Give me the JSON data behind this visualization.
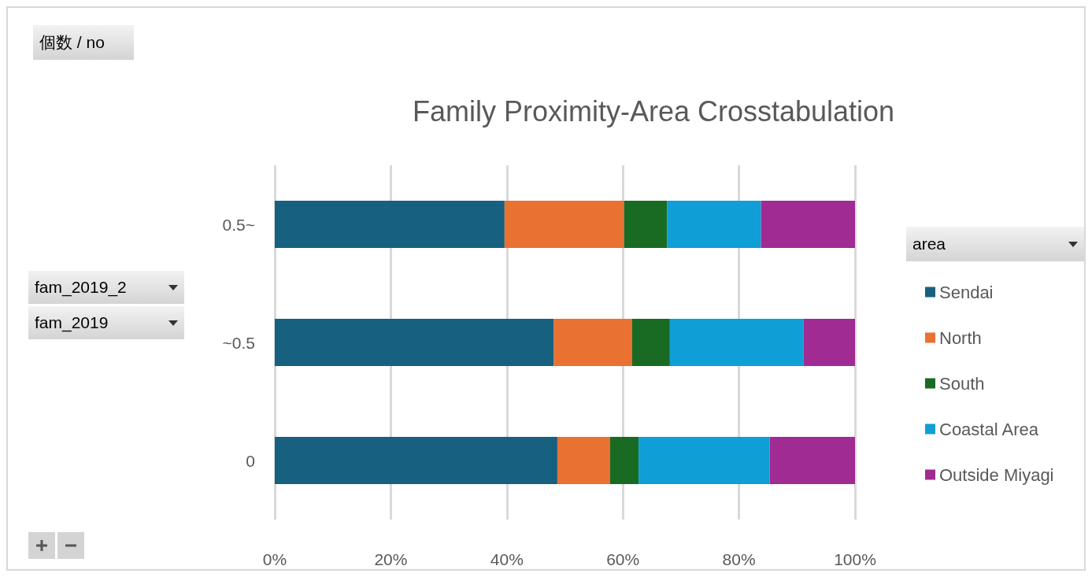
{
  "chart_data": {
    "type": "bar",
    "orientation": "horizontal",
    "stacked": true,
    "title": "Family Proximity-Area Crosstabulation",
    "legend_title": "area",
    "annotations": [
      "個数 / no",
      "fam_2019_2",
      "fam_2019"
    ],
    "categories": [
      "0.5~",
      "~0.5",
      "0"
    ],
    "series": [
      {
        "name": "Sendai",
        "color": "#17607f",
        "values": [
          39.6,
          48.1,
          48.7
        ]
      },
      {
        "name": "North",
        "color": "#e97132",
        "values": [
          20.6,
          13.5,
          9.1
        ]
      },
      {
        "name": "South",
        "color": "#196b24",
        "values": [
          7.4,
          6.5,
          4.9
        ]
      },
      {
        "name": "Coastal Area",
        "color": "#0f9ed5",
        "values": [
          16.2,
          23.0,
          22.6
        ]
      },
      {
        "name": "Outside Miyagi",
        "color": "#a02b93",
        "values": [
          16.2,
          8.9,
          14.7
        ]
      }
    ],
    "xlim": [
      0,
      100
    ],
    "xticks": [
      {
        "value": 0,
        "label": "0%"
      },
      {
        "value": 20,
        "label": "20%"
      },
      {
        "value": 40,
        "label": "40%"
      },
      {
        "value": 60,
        "label": "60%"
      },
      {
        "value": 80,
        "label": "80%"
      },
      {
        "value": 100,
        "label": "100%"
      }
    ],
    "grid": "x",
    "legend": "right"
  }
}
